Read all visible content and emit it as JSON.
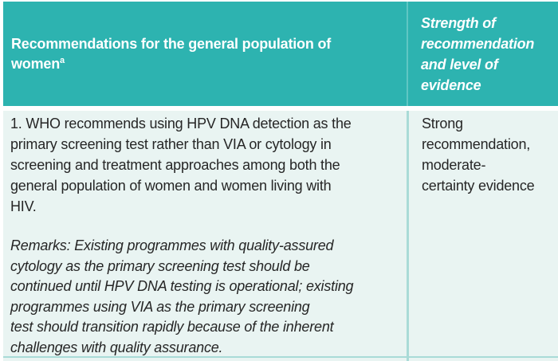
{
  "colors": {
    "header_teal": "#2db3b0",
    "header_divider_teal": "#5fc6c3",
    "body_tint": "#e9f4f2",
    "body_divider_teal": "#a9dbd7",
    "header_text": "#ffffff",
    "body_text": "#262626"
  },
  "table": {
    "header": {
      "left_title": "Recommendations for the general population of\nwomen",
      "left_title_note": "a",
      "right_title": "Strength of\nrecommendation\nand level of\nevidence"
    },
    "row": {
      "recommendation": "1. WHO recommends using HPV DNA detection as the\nprimary screening test rather than VIA or cytology in\nscreening and treatment approaches among both the\ngeneral population of women and women living with\nHIV.",
      "remarks": "Remarks: Existing programmes with quality-assured\ncytology as the primary screening test should be\ncontinued until HPV DNA testing is operational; existing\nprogrammes using VIA as the primary screening\ntest should transition rapidly because of the inherent\nchallenges with quality assurance.",
      "strength": "Strong\nrecommendation,\nmoderate-\ncertainty evidence"
    }
  }
}
